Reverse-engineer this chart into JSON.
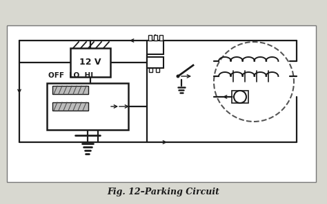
{
  "title": "Fig. 12–Parking Circuit",
  "bg_color": "#d8d8d0",
  "line_color": "#1a1a1a",
  "fig_width": 4.74,
  "fig_height": 2.97,
  "dpi": 100
}
